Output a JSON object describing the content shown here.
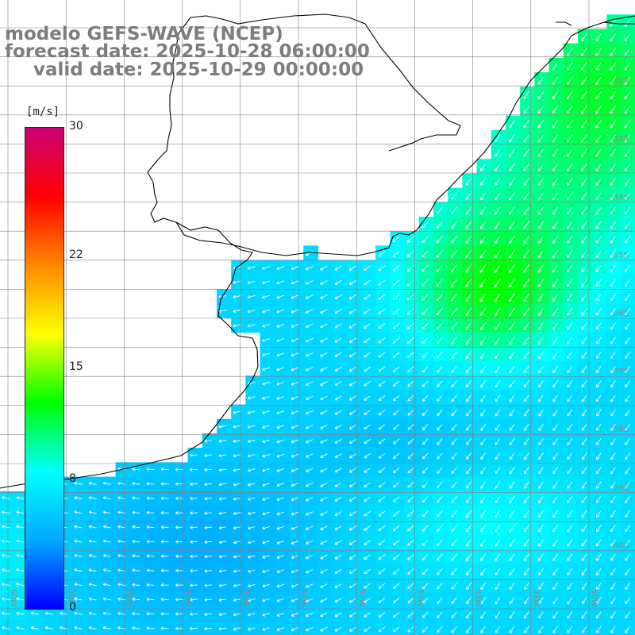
{
  "title": {
    "line1": "modelo GEFS-WAVE (NCEP)",
    "line2": "forecast date: 2025-10-28 06:00:00",
    "line3": "valid date: 2025-10-29 00:00:00"
  },
  "colorbar": {
    "units": "[m/s]",
    "ticks": [
      "30",
      "22",
      "15",
      "8",
      "0"
    ],
    "tick_values": [
      30,
      22,
      15,
      8,
      0
    ],
    "min": 0,
    "max": 30,
    "colors": [
      "#0000ff",
      "#00aaff",
      "#00ffff",
      "#00ff00",
      "#ffff00",
      "#ff8800",
      "#ff0000",
      "#cc0077"
    ]
  },
  "map": {
    "lat_labels": [
      "32S",
      "33S",
      "34S",
      "35S",
      "36S",
      "37S",
      "38S",
      "39S",
      "40S"
    ],
    "lon_labels": [
      "60W",
      "59W",
      "58W",
      "57W",
      "56W",
      "55W",
      "54W",
      "53W",
      "52W",
      "51W",
      "50W"
    ],
    "land_color": "#ffffff",
    "coast_color": "#000000",
    "grid_color": "#808080",
    "arrow_color": "#ffffff"
  }
}
